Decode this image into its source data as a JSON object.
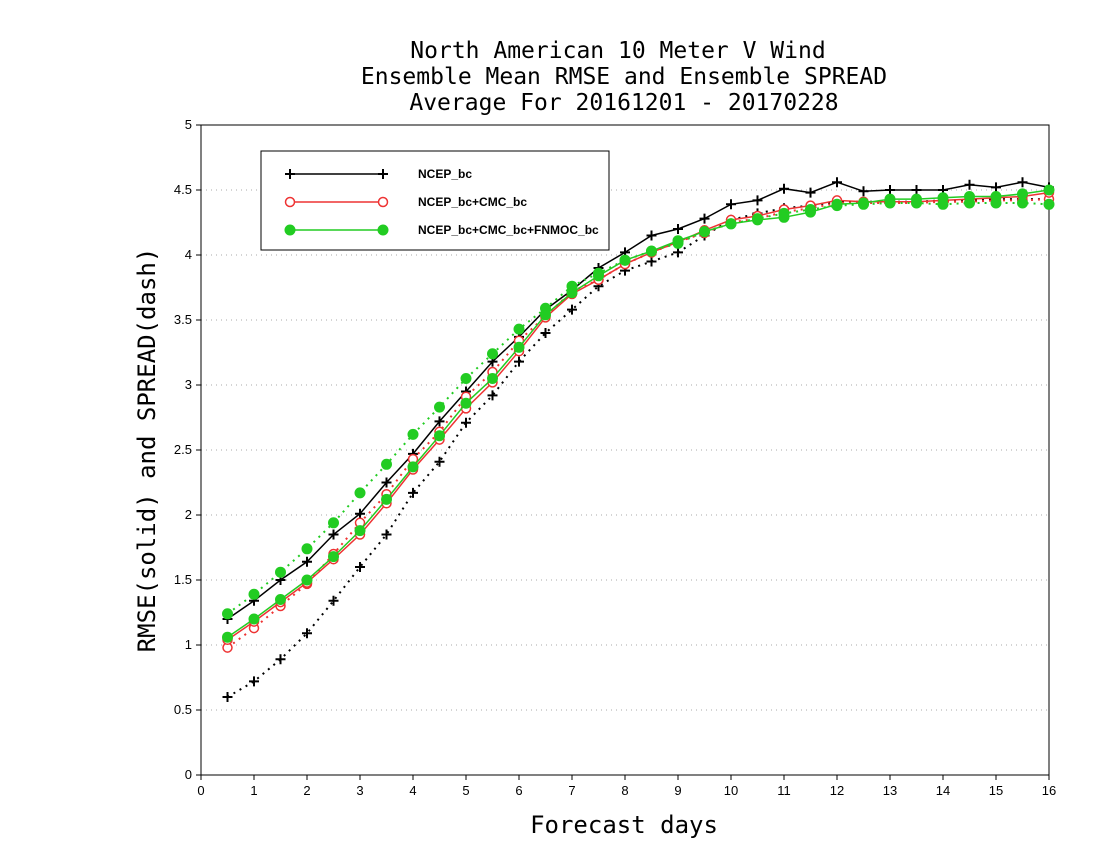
{
  "chart_data": {
    "type": "line",
    "title": [
      "North American 10 Meter V Wind",
      "Ensemble Mean RMSE and Ensemble SPREAD",
      "Average For 20161201 - 20170228"
    ],
    "xlabel": "Forecast days",
    "ylabel": "RMSE(solid) and SPREAD(dash)",
    "xlim": [
      0,
      16
    ],
    "ylim": [
      0,
      5
    ],
    "xticks": [
      "0",
      "1",
      "2",
      "3",
      "4",
      "5",
      "6",
      "7",
      "8",
      "9",
      "10",
      "11",
      "12",
      "13",
      "14",
      "15",
      "16"
    ],
    "yticks": [
      "0",
      "0.5",
      "1",
      "1.5",
      "2",
      "2.5",
      "3",
      "3.5",
      "4",
      "4.5",
      "5"
    ],
    "grid": "horizontal dotted",
    "legend_position": "top-left",
    "x": [
      0.5,
      1,
      1.5,
      2,
      2.5,
      3,
      3.5,
      4,
      4.5,
      5,
      5.5,
      6,
      6.5,
      7,
      7.5,
      8,
      8.5,
      9,
      9.5,
      10,
      10.5,
      11,
      11.5,
      12,
      12.5,
      13,
      13.5,
      14,
      14.5,
      15,
      15.5,
      16
    ],
    "series": [
      {
        "name": "NCEP_bc",
        "color": "#000000",
        "marker": "plus",
        "rmse": [
          1.2,
          1.34,
          1.5,
          1.64,
          1.85,
          2.01,
          2.25,
          2.47,
          2.72,
          2.95,
          3.18,
          3.37,
          3.58,
          3.73,
          3.9,
          4.02,
          4.15,
          4.2,
          4.28,
          4.39,
          4.42,
          4.51,
          4.48,
          4.56,
          4.49,
          4.5,
          4.5,
          4.5,
          4.54,
          4.52,
          4.56,
          4.52
        ],
        "spread": [
          0.6,
          0.72,
          0.89,
          1.09,
          1.34,
          1.6,
          1.85,
          2.17,
          2.41,
          2.71,
          2.92,
          3.18,
          3.4,
          3.58,
          3.76,
          3.88,
          3.95,
          4.02,
          4.15,
          4.27,
          4.32,
          4.36,
          4.38,
          4.41,
          4.41,
          4.41,
          4.41,
          4.42,
          4.42,
          4.43,
          4.43,
          4.43
        ]
      },
      {
        "name": "NCEP_bc+CMC_bc",
        "color": "#ee3333",
        "marker": "open-circle",
        "rmse": [
          1.04,
          1.18,
          1.33,
          1.48,
          1.66,
          1.85,
          2.09,
          2.35,
          2.58,
          2.82,
          3.02,
          3.26,
          3.52,
          3.7,
          3.81,
          3.93,
          4.02,
          4.1,
          4.19,
          4.27,
          4.3,
          4.35,
          4.38,
          4.42,
          4.41,
          4.41,
          4.41,
          4.42,
          4.43,
          4.44,
          4.45,
          4.48
        ],
        "spread": [
          0.98,
          1.13,
          1.3,
          1.47,
          1.7,
          1.94,
          2.16,
          2.43,
          2.64,
          2.91,
          3.1,
          3.34,
          3.53,
          3.72,
          3.81,
          3.93,
          4.02,
          4.1,
          4.17,
          4.25,
          4.28,
          4.33,
          4.36,
          4.4,
          4.4,
          4.4,
          4.4,
          4.41,
          4.41,
          4.42,
          4.42,
          4.43
        ]
      },
      {
        "name": "NCEP_bc+CMC_bc+FNMOC_bc",
        "color": "#22cc22",
        "marker": "filled-circle",
        "rmse": [
          1.06,
          1.2,
          1.35,
          1.5,
          1.68,
          1.88,
          2.12,
          2.37,
          2.61,
          2.86,
          3.05,
          3.29,
          3.54,
          3.71,
          3.84,
          3.96,
          4.03,
          4.11,
          4.18,
          4.24,
          4.27,
          4.29,
          4.33,
          4.39,
          4.4,
          4.43,
          4.43,
          4.44,
          4.45,
          4.45,
          4.47,
          4.5
        ],
        "spread": [
          1.24,
          1.39,
          1.56,
          1.74,
          1.94,
          2.17,
          2.39,
          2.62,
          2.83,
          3.05,
          3.24,
          3.43,
          3.59,
          3.76,
          3.86,
          3.96,
          4.03,
          4.09,
          4.18,
          4.24,
          4.28,
          4.32,
          4.35,
          4.38,
          4.39,
          4.4,
          4.4,
          4.39,
          4.4,
          4.4,
          4.4,
          4.39
        ]
      }
    ]
  }
}
